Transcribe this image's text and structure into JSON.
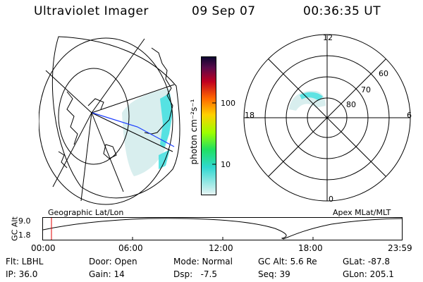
{
  "header": {
    "instrument": "Ultraviolet Imager",
    "date": "09 Sep 07",
    "time": "00:36:35 UT"
  },
  "colorbar": {
    "unit_label": "photon cm⁻²s⁻¹",
    "ticks": [
      "100",
      "10"
    ],
    "scale": "log"
  },
  "geographic_panel": {
    "label": "Geographic Lat/Lon"
  },
  "polar_panel": {
    "label": "Apex MLat/MLT",
    "mlt_labels": [
      "12",
      "18",
      "6",
      "0"
    ],
    "lat_labels": [
      "60",
      "70",
      "80"
    ]
  },
  "altitude_plot": {
    "ylabel": "GC Alt",
    "yticks": [
      "9.0",
      "1.8"
    ],
    "xticks": [
      "00:00",
      "06:00",
      "12:00",
      "18:00",
      "23:59"
    ],
    "current_marker_time": "00:36",
    "marker_color": "#e00000"
  },
  "info": {
    "filter": "Flt: LBHL",
    "door": "Door: Open",
    "mode": "Mode: Normal",
    "gc_alt": "GC Alt: 5.6 Re",
    "glat": "GLat: -87.8",
    "ip": "IP: 36.0",
    "gain": "Gain: 14",
    "dsp": "Dsp:   -7.5",
    "seq": "Seq: 39",
    "glon": "GLon: 205.1"
  },
  "colors": {
    "aurora": "#40e0e0",
    "track": "#1a3cff"
  }
}
